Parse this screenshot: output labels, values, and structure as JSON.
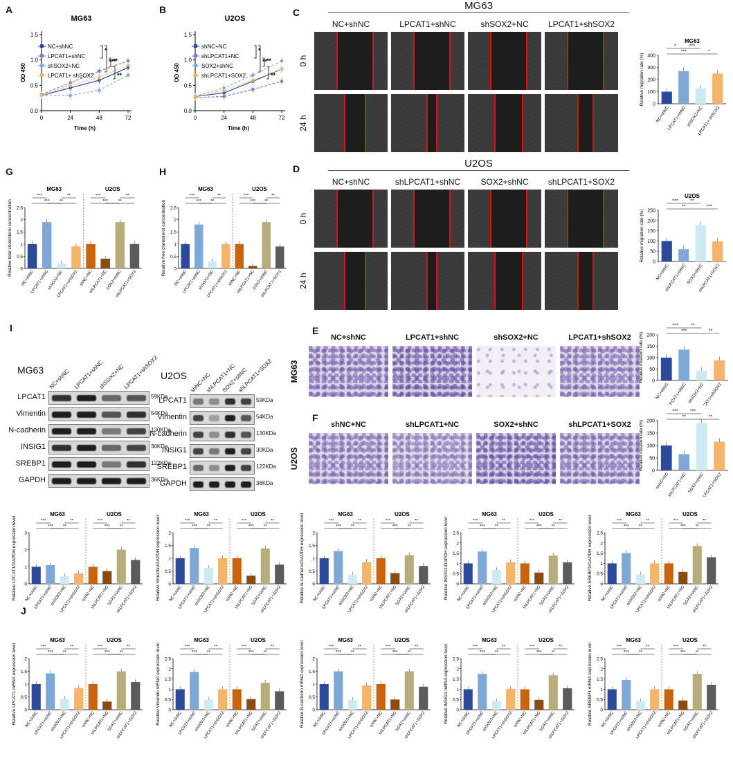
{
  "panels": {
    "A": "A",
    "B": "B",
    "C": "C",
    "D": "D",
    "E": "E",
    "F": "F",
    "G": "G",
    "H": "H",
    "I": "I",
    "J": "J"
  },
  "colors": {
    "navy": "#2d4a9a",
    "lightblue": "#7ea9d6",
    "pale": "#cdeaf2",
    "orange": "#f5b46a",
    "brown": "#c8640e",
    "darkbrown": "#8a4b12",
    "olive": "#b7ad7a",
    "grey": "#5b5b5b"
  },
  "growth": {
    "A": {
      "title": "MG63",
      "xlabel": "Time (h)",
      "ylabel": "OD 450",
      "legend": [
        "NC+shNC",
        "LPCAT1+shNC",
        "shSOX2+NC",
        "LPCAT1+ shSOX2"
      ],
      "sig": [
        "*",
        "***",
        "**",
        "**"
      ]
    },
    "B": {
      "title": "U2OS",
      "xlabel": "Time (h)",
      "ylabel": "OD 450",
      "legend": [
        "shNC+NC",
        "shLPCAT1+NC",
        "SOX2+shNC",
        "shLPCAT1+SOX2"
      ],
      "sig": [
        "*",
        "**",
        "**",
        "**"
      ]
    }
  },
  "scratch": {
    "C": {
      "header": "MG63",
      "groups": [
        "NC+shNC",
        "LPCAT1+shNC",
        "shSOX2+NC",
        "LPCAT1+shSOX2"
      ],
      "rows": [
        "0 h",
        "24 h"
      ]
    },
    "D": {
      "header": "U2OS",
      "groups": [
        "NC+shNC",
        "shLPCAT1+shNC",
        "SOX2+shNC",
        "shLPCAT1+SOX2"
      ],
      "rows": [
        "0 h",
        "24 h"
      ]
    }
  },
  "transwell": {
    "E": {
      "cell": "MG63",
      "groups": [
        "NC+shNC",
        "LPCAT1+shNC",
        "shSOX2+NC",
        "LPCAT1+shSOX2"
      ]
    },
    "F": {
      "cell": "U2OS",
      "groups": [
        "shNC+NC",
        "shLPCAT1+NC",
        "SOX2+shNC",
        "shLPCAT1+SOX2"
      ]
    }
  },
  "western": {
    "mg63": {
      "title": "MG63",
      "lanes": [
        "NC+shNC",
        "LPCAT1+shNC",
        "shSOX2+NC",
        "LPCAT1+shSOX2"
      ]
    },
    "u2os": {
      "title": "U2OS",
      "lanes": [
        "shNC+NC",
        "shLPCAT1+NC",
        "SOX2+shNC",
        "shLPCAT1+SOX2"
      ]
    },
    "proteins": [
      "LPCAT1",
      "Vimentin",
      "N-cadherin",
      "INSIG1",
      "SREBP1",
      "GAPDH"
    ],
    "kda": [
      "59KDa",
      "54KDa",
      "130KDa",
      "30KDa",
      "122KDa",
      "36KDa"
    ]
  },
  "chart_data": [
    {
      "id": "A",
      "type": "line",
      "title": "MG63",
      "xlabel": "Time (h)",
      "ylabel": "OD 450",
      "x": [
        0,
        24,
        48,
        72
      ],
      "xlim": [
        0,
        72
      ],
      "ylim": [
        0.0,
        1.5
      ],
      "series": [
        {
          "name": "NC+shNC",
          "values": [
            0.3,
            0.45,
            0.6,
            0.85
          ]
        },
        {
          "name": "LPCAT1+shNC",
          "values": [
            0.32,
            0.55,
            0.78,
            0.98
          ]
        },
        {
          "name": "shSOX2+NC",
          "values": [
            0.3,
            0.3,
            0.4,
            0.7
          ]
        },
        {
          "name": "LPCAT1+ shSOX2",
          "values": [
            0.3,
            0.5,
            0.66,
            0.9
          ]
        }
      ]
    },
    {
      "id": "B",
      "type": "line",
      "title": "U2OS",
      "xlabel": "Time (h)",
      "ylabel": "OD 450",
      "x": [
        0,
        24,
        48,
        72
      ],
      "xlim": [
        0,
        72
      ],
      "ylim": [
        0.0,
        1.5
      ],
      "series": [
        {
          "name": "shNC+NC",
          "values": [
            0.28,
            0.35,
            0.58,
            0.82
          ]
        },
        {
          "name": "shLPCAT1+NC",
          "values": [
            0.26,
            0.28,
            0.42,
            0.58
          ]
        },
        {
          "name": "SOX2+shNC",
          "values": [
            0.28,
            0.45,
            0.7,
            0.98
          ]
        },
        {
          "name": "shLPCAT1+SOX2",
          "values": [
            0.27,
            0.4,
            0.6,
            0.82
          ]
        }
      ]
    },
    {
      "id": "C-bar",
      "type": "bar",
      "title": "MG63",
      "ylabel": "Relative migration rate (%)",
      "ylim": [
        0,
        400
      ],
      "categories": [
        "NC+shNC",
        "LPCAT1+shNC",
        "shSOX2+NC",
        "LPCAT1+ shSOX2"
      ],
      "values": [
        100,
        270,
        125,
        250
      ],
      "sig": [
        "*",
        "***",
        "***",
        "*"
      ]
    },
    {
      "id": "D-bar",
      "type": "bar",
      "title": "U2OS",
      "ylabel": "Relative migration rate (%)",
      "ylim": [
        0,
        250
      ],
      "categories": [
        "NC+shNC",
        "shLPCAT1+shNC",
        "SOX2+shNC",
        "shLPCAT1+SOX2"
      ],
      "values": [
        100,
        60,
        178,
        98
      ],
      "sig": [
        "***",
        "**",
        "**",
        "***"
      ]
    },
    {
      "id": "E-bar",
      "type": "bar",
      "ylabel": "Relative invasion rate (%)",
      "ylim": [
        0,
        200
      ],
      "categories": [
        "NC+shNC",
        "LPCAT1+shNC",
        "shSOX2+NC",
        "LPCAT1+shSOX2"
      ],
      "values": [
        100,
        135,
        42,
        88
      ],
      "sig": [
        "***",
        "***",
        "**",
        "**"
      ]
    },
    {
      "id": "F-bar",
      "type": "bar",
      "ylabel": "Relative invasion rate (%)",
      "ylim": [
        0,
        200
      ],
      "categories": [
        "shNC+NC",
        "shLPCAT1+NC",
        "SOX2+shNC",
        "shLPCAT1+SOX2"
      ],
      "values": [
        100,
        65,
        190,
        115
      ],
      "sig": [
        "***",
        "**",
        "***",
        "**"
      ]
    },
    {
      "id": "G",
      "type": "bar",
      "ylabel": "Relative total cholesterol concentration",
      "ylim": [
        0,
        2.5
      ],
      "groups": [
        {
          "title": "MG63",
          "categories": [
            "NC+shNC",
            "LPCAT1+shNC",
            "shSOX2+NC",
            "LPCAT1+shSOX2"
          ],
          "values": [
            1.0,
            1.9,
            0.2,
            0.9
          ]
        },
        {
          "title": "U2OS",
          "categories": [
            "shNC+NC",
            "shLPCAT1+NC",
            "SOX2+shNC",
            "shLPCAT1+SOX2"
          ],
          "values": [
            1.0,
            0.4,
            1.9,
            1.0
          ]
        }
      ]
    },
    {
      "id": "H",
      "type": "bar",
      "ylabel": "Relative free cholesterol concentration",
      "ylim": [
        0,
        2.5
      ],
      "groups": [
        {
          "title": "MG63",
          "categories": [
            "NC+shNC",
            "LPCAT1+shNC",
            "shSOX2+NC",
            "LPCAT1+shSOX2"
          ],
          "values": [
            1.0,
            1.8,
            0.3,
            1.0
          ]
        },
        {
          "title": "U2OS",
          "categories": [
            "shNC+NC",
            "shLPCAT1+NC",
            "SOX2+shNC",
            "shLPCAT1+SOX2"
          ],
          "values": [
            1.0,
            0.1,
            1.9,
            0.9
          ]
        }
      ]
    },
    {
      "id": "I-LPCAT1",
      "type": "bar",
      "ylabel": "Relative LPCAT1/GAPDH expression level",
      "ylim": [
        0,
        3
      ],
      "groups": [
        {
          "title": "MG63",
          "values": [
            1.0,
            1.1,
            0.45,
            0.62
          ]
        },
        {
          "title": "U2OS",
          "values": [
            1.0,
            0.75,
            2.0,
            1.4
          ]
        }
      ]
    },
    {
      "id": "I-Vimentin",
      "type": "bar",
      "ylabel": "Relative Vimentin/GAPDH expression level",
      "ylim": [
        0,
        2.0
      ],
      "groups": [
        {
          "title": "MG63",
          "values": [
            1.0,
            1.4,
            0.62,
            1.0
          ]
        },
        {
          "title": "U2OS",
          "values": [
            1.0,
            0.32,
            1.38,
            0.75
          ]
        }
      ]
    },
    {
      "id": "I-Ncad",
      "type": "bar",
      "ylabel": "Relative N-cadherin/GAPDH expression level",
      "ylim": [
        0,
        2.0
      ],
      "groups": [
        {
          "title": "MG63",
          "values": [
            1.0,
            1.28,
            0.35,
            0.85
          ]
        },
        {
          "title": "U2OS",
          "values": [
            1.0,
            0.42,
            1.12,
            0.7
          ]
        }
      ]
    },
    {
      "id": "I-INSIG1",
      "type": "bar",
      "ylabel": "Relative INSIG1/GAPDH expression level",
      "ylim": [
        0,
        2.5
      ],
      "groups": [
        {
          "title": "MG63",
          "values": [
            1.0,
            1.58,
            0.68,
            1.05
          ]
        },
        {
          "title": "U2OS",
          "values": [
            1.0,
            0.55,
            1.38,
            1.05
          ]
        }
      ]
    },
    {
      "id": "I-SREBP1",
      "type": "bar",
      "ylabel": "Relative SREBP1/GAPDH expression level",
      "ylim": [
        0,
        2.5
      ],
      "groups": [
        {
          "title": "MG63",
          "values": [
            1.0,
            1.5,
            0.45,
            1.0
          ]
        },
        {
          "title": "U2OS",
          "values": [
            1.0,
            0.58,
            1.85,
            1.3
          ]
        }
      ]
    },
    {
      "id": "J-LPCAT1",
      "type": "bar",
      "ylabel": "Relative LPCAT1 mRNA expression level",
      "ylim": [
        0,
        2.0
      ],
      "groups": [
        {
          "title": "MG63",
          "values": [
            1.0,
            1.42,
            0.42,
            0.85
          ]
        },
        {
          "title": "U2OS",
          "values": [
            1.0,
            0.32,
            1.5,
            1.08
          ]
        }
      ]
    },
    {
      "id": "J-Vimentin",
      "type": "bar",
      "ylabel": "Relative Vimentin mRNA expression level",
      "ylim": [
        0,
        2.5
      ],
      "groups": [
        {
          "title": "MG63",
          "values": [
            1.0,
            1.85,
            0.5,
            1.0
          ]
        },
        {
          "title": "U2OS",
          "values": [
            1.0,
            0.52,
            1.32,
            0.9
          ]
        }
      ]
    },
    {
      "id": "J-Ncad",
      "type": "bar",
      "ylabel": "Relative N-cadherin mRNA expression level",
      "ylim": [
        0,
        2.0
      ],
      "groups": [
        {
          "title": "MG63",
          "values": [
            1.0,
            1.5,
            0.38,
            0.95
          ]
        },
        {
          "title": "U2OS",
          "values": [
            1.0,
            0.4,
            1.5,
            0.9
          ]
        }
      ]
    },
    {
      "id": "J-INSIG1",
      "type": "bar",
      "ylabel": "Relative INSIG1 mRNA expression level",
      "ylim": [
        0,
        2.5
      ],
      "groups": [
        {
          "title": "MG63",
          "values": [
            1.0,
            1.75,
            0.42,
            1.02
          ]
        },
        {
          "title": "U2OS",
          "values": [
            1.0,
            0.48,
            1.68,
            1.05
          ]
        }
      ]
    },
    {
      "id": "J-SREBP1",
      "type": "bar",
      "ylabel": "Relative SREBP1 mRNA expression level",
      "ylim": [
        0,
        2.5
      ],
      "groups": [
        {
          "title": "MG63",
          "values": [
            1.0,
            1.45,
            0.42,
            1.0
          ]
        },
        {
          "title": "U2OS",
          "values": [
            1.0,
            0.45,
            1.75,
            1.22
          ]
        }
      ]
    }
  ],
  "small_bars": {
    "mg63_categories": [
      "NC+shNC",
      "LPCAT1+shNC",
      "shSOX2+NC",
      "LPCAT1+shSOX2"
    ],
    "u2os_categories": [
      "shNC+NC",
      "shLPCAT1+NC",
      "SOX2+shNC",
      "shLPCAT1+SOX2"
    ],
    "group_titles": [
      "MG63",
      "U2OS"
    ],
    "sig_common": [
      "***",
      "***",
      "**",
      "**"
    ]
  }
}
